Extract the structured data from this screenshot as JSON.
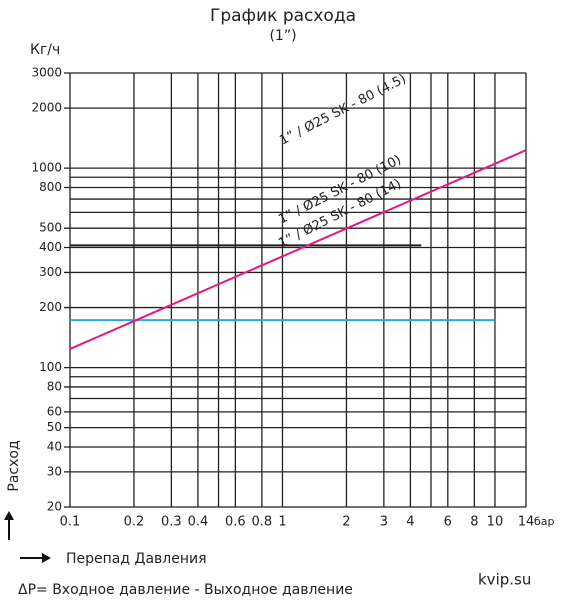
{
  "chart_data": {
    "type": "line",
    "title": "График расхода",
    "subtitle": "(1”)",
    "y_label": "Кг/ч",
    "x_unit": "бар",
    "y_axis_title": "Расход",
    "x_axis_title": "Перепад Давления",
    "footnote": "ΔP= Входное давление -  Выходное давление",
    "source": "kvip.su",
    "log_x": true,
    "log_y": true,
    "grid": true,
    "xlim": [
      0.1,
      14
    ],
    "ylim": [
      20,
      3000
    ],
    "xticks": [
      0.1,
      0.2,
      0.3,
      0.4,
      0.6,
      0.8,
      1,
      2,
      3,
      4,
      6,
      8,
      10,
      14
    ],
    "yticks": [
      20,
      30,
      40,
      50,
      60,
      80,
      100,
      200,
      300,
      400,
      500,
      800,
      1000,
      2000,
      3000
    ],
    "x_minor_grid": [
      0.5,
      5
    ],
    "y_minor_grid": [
      70,
      90,
      600,
      700,
      900
    ],
    "series": [
      {
        "name": "1” / Ø25 SK - 80 (4.5)",
        "color": "#222222",
        "x": [
          0.1,
          4.5
        ],
        "values": [
          410,
          410
        ]
      },
      {
        "name": "1” / Ø25 SK - 80 (10)",
        "color": "#29a8e0",
        "x": [
          0.1,
          10
        ],
        "values": [
          173,
          173
        ]
      },
      {
        "name": "1” / Ø25 SK - 80 (14)",
        "color": "#e5197f",
        "x": [
          0.1,
          14
        ],
        "values": [
          124,
          1230
        ]
      }
    ]
  }
}
